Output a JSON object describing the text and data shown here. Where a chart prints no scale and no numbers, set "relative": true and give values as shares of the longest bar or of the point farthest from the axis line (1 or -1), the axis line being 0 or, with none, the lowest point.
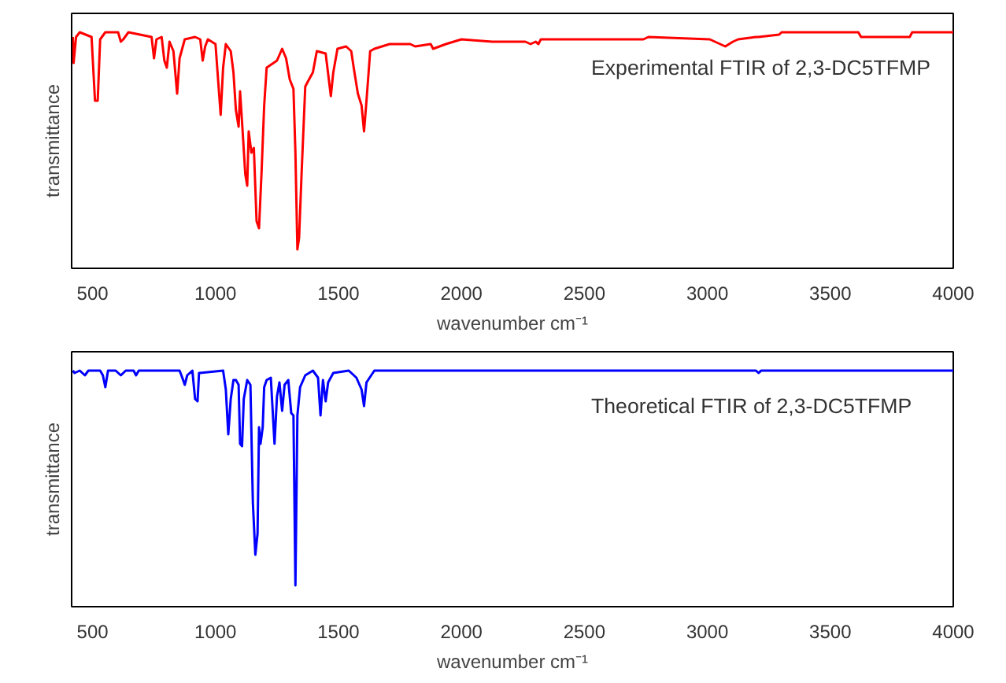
{
  "chart_data": [
    {
      "type": "line",
      "relative": true,
      "xlabel": "wavenumber cm⁻¹",
      "ylabel": "transmittance",
      "annotations": [
        "Experimental FTIR of 2,3-DC5TFMP"
      ],
      "xlim": [
        415,
        4000
      ],
      "xticks": [
        500,
        1000,
        1500,
        2000,
        2500,
        3000,
        3500,
        4000
      ],
      "tick_labels": "x",
      "grid": false,
      "x": [
        420,
        423,
        433,
        448,
        496,
        510,
        521,
        531,
        552,
        604,
        615,
        625,
        646,
        740,
        750,
        760,
        781,
        792,
        802,
        813,
        829,
        844,
        854,
        875,
        917,
        938,
        948,
        958,
        969,
        1000,
        1021,
        1031,
        1042,
        1062,
        1073,
        1083,
        1094,
        1100,
        1108,
        1121,
        1129,
        1135,
        1146,
        1156,
        1167,
        1177,
        1187,
        1198,
        1208,
        1250,
        1271,
        1287,
        1302,
        1317,
        1325,
        1333,
        1340,
        1350,
        1365,
        1375,
        1396,
        1412,
        1448,
        1469,
        1479,
        1496,
        1531,
        1552,
        1562,
        1579,
        1594,
        1604,
        1614,
        1629,
        1646,
        1708,
        1792,
        1812,
        1875,
        1885,
        1937,
        2000,
        2125,
        2260,
        2281,
        2302,
        2313,
        2323,
        2719,
        2740,
        2760,
        3010,
        3052,
        3073,
        3104,
        3125,
        3198,
        3208,
        3292,
        3302,
        3614,
        3625,
        3823,
        3833,
        4000
      ],
      "series": [
        {
          "color": "#ff0000",
          "values": [
            0.98,
            0.87,
            0.98,
            1.0,
            0.98,
            0.71,
            0.71,
            0.97,
            1.0,
            1.0,
            0.96,
            0.97,
            1.0,
            0.98,
            0.89,
            0.97,
            0.98,
            0.88,
            0.85,
            0.96,
            0.92,
            0.74,
            0.89,
            0.97,
            0.98,
            0.97,
            0.88,
            0.94,
            0.97,
            0.95,
            0.65,
            0.85,
            0.95,
            0.92,
            0.83,
            0.67,
            0.6,
            0.75,
            0.62,
            0.4,
            0.35,
            0.58,
            0.49,
            0.51,
            0.2,
            0.17,
            0.4,
            0.69,
            0.85,
            0.88,
            0.93,
            0.89,
            0.8,
            0.76,
            0.49,
            0.08,
            0.13,
            0.4,
            0.77,
            0.79,
            0.83,
            0.92,
            0.91,
            0.73,
            0.83,
            0.93,
            0.94,
            0.92,
            0.85,
            0.74,
            0.69,
            0.58,
            0.71,
            0.92,
            0.93,
            0.95,
            0.95,
            0.94,
            0.95,
            0.93,
            0.95,
            0.97,
            0.96,
            0.96,
            0.95,
            0.96,
            0.95,
            0.97,
            0.97,
            0.97,
            0.98,
            0.97,
            0.95,
            0.94,
            0.96,
            0.97,
            0.98,
            0.98,
            0.99,
            1.0,
            1.0,
            0.98,
            0.98,
            1.0,
            1.0
          ]
        }
      ]
    },
    {
      "type": "line",
      "relative": true,
      "xlabel": "wavenumber cm⁻¹",
      "ylabel": "transmittance",
      "annotations": [
        "Theoretical FTIR of 2,3-DC5TFMP"
      ],
      "xlim": [
        415,
        4000
      ],
      "xticks": [
        500,
        1000,
        1500,
        2000,
        2500,
        3000,
        3500,
        4000
      ],
      "tick_labels": "x",
      "grid": false,
      "x": [
        420,
        427,
        448,
        469,
        483,
        510,
        531,
        542,
        552,
        563,
        594,
        615,
        635,
        667,
        677,
        688,
        729,
        750,
        854,
        865,
        875,
        885,
        906,
        917,
        927,
        933,
        1031,
        1042,
        1052,
        1062,
        1073,
        1083,
        1094,
        1100,
        1108,
        1115,
        1129,
        1142,
        1152,
        1162,
        1171,
        1177,
        1183,
        1192,
        1198,
        1208,
        1225,
        1240,
        1250,
        1260,
        1271,
        1281,
        1296,
        1308,
        1317,
        1325,
        1333,
        1344,
        1365,
        1396,
        1417,
        1427,
        1437,
        1448,
        1458,
        1479,
        1542,
        1573,
        1594,
        1604,
        1614,
        1646,
        2229,
        3198,
        3208,
        3219,
        4000
      ],
      "series": [
        {
          "color": "#0000ff",
          "values": [
            1.0,
            0.99,
            1.0,
            0.98,
            1.0,
            1.0,
            1.0,
            0.98,
            0.93,
            1.0,
            1.0,
            0.98,
            1.0,
            1.0,
            0.98,
            1.0,
            1.0,
            1.0,
            1.0,
            0.97,
            0.94,
            0.98,
            1.0,
            0.88,
            0.87,
            0.99,
            1.0,
            0.92,
            0.73,
            0.88,
            0.96,
            0.96,
            0.94,
            0.69,
            0.68,
            0.88,
            0.96,
            0.94,
            0.44,
            0.22,
            0.31,
            0.76,
            0.69,
            0.76,
            0.93,
            0.96,
            0.97,
            0.69,
            0.89,
            0.95,
            0.83,
            0.94,
            0.96,
            0.82,
            0.81,
            0.09,
            0.81,
            0.93,
            0.98,
            1.0,
            0.97,
            0.81,
            0.96,
            0.87,
            0.95,
            0.99,
            1.0,
            0.97,
            0.92,
            0.85,
            0.95,
            1.0,
            1.0,
            1.0,
            0.99,
            1.0,
            1.0
          ]
        }
      ]
    }
  ]
}
